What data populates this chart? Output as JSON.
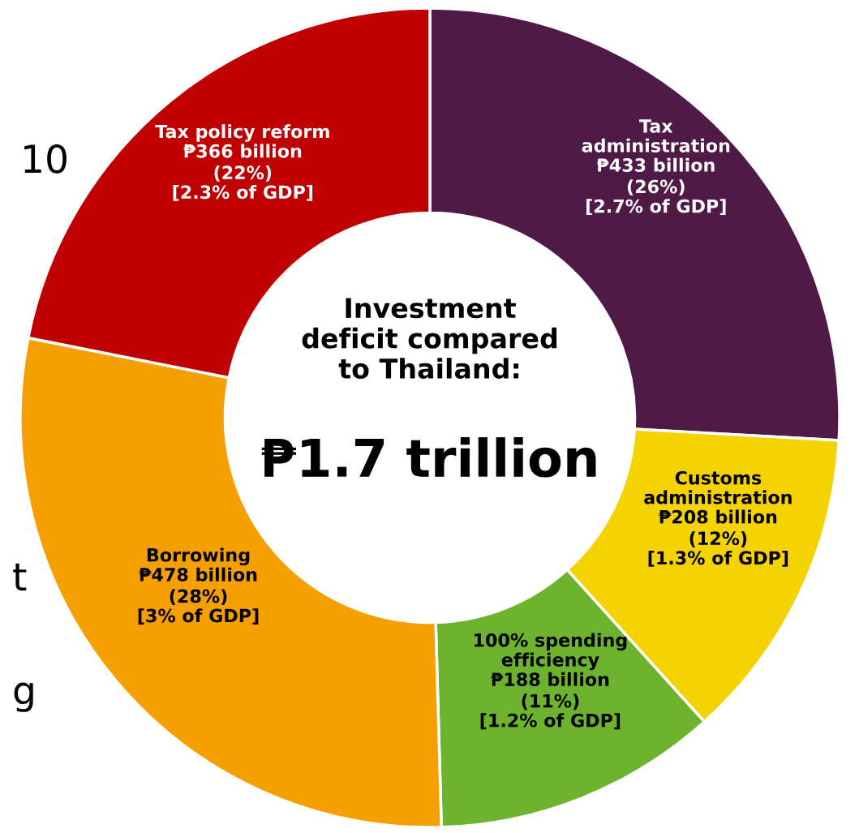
{
  "chart_data": {
    "type": "donut",
    "title": "Investment\ndeficit compared\nto Thailand:",
    "subtitle": "₱1.7 trillion",
    "categories": [
      "Tax\nadministration",
      "Customs\nadministration",
      "100% spending\nefficiency",
      "Borrowing",
      "Tax policy reform"
    ],
    "values": [
      433,
      208,
      188,
      478,
      366
    ],
    "colors": [
      "#4f1a45",
      "#f5d300",
      "#6db32d",
      "#f5a000",
      "#c00000"
    ],
    "value_labels": [
      "₱433 billion",
      "₱208 billion",
      "₱188 billion",
      "₱478 billion",
      "₱366 billion"
    ],
    "annotations": [
      "(26%)\n[2.7% of GDP]",
      "(12%)\n[1.3% of GDP]",
      "(11%)\n[1.2% of GDP]",
      "(28%)\n[3% of GDP]",
      "(22%)\n[2.3% of GDP]",
      "10",
      "t",
      "g"
    ]
  }
}
